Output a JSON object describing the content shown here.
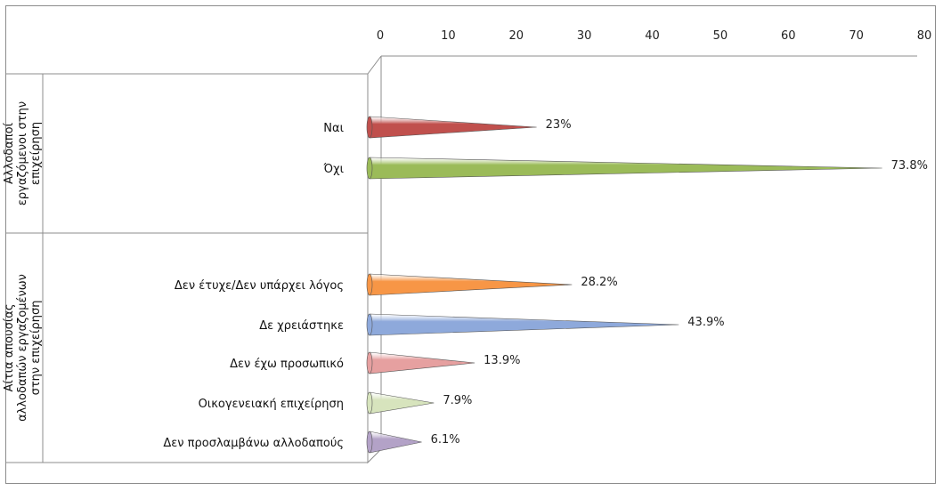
{
  "chart_data": {
    "type": "bar",
    "orientation": "horizontal",
    "style": "3d-cone",
    "x_ticks": [
      "0",
      "10",
      "20",
      "30",
      "40",
      "50",
      "60",
      "70",
      "80"
    ],
    "xlim": [
      0,
      80
    ],
    "groups": [
      {
        "label": "Αλλοδαποί εργαζόμενοι στην επιχείρηση",
        "categories": [
          {
            "label": "Ναι",
            "value": 23,
            "data_label": "23%",
            "color": "#c0504d"
          },
          {
            "label": "Όχι",
            "value": 73.8,
            "data_label": "73.8%",
            "color": "#9bbb59"
          }
        ]
      },
      {
        "label": "Αίτια απουσίας αλλοδαπών εργαζομένων στην επιχείρηση",
        "categories": [
          {
            "label": "Δεν έτυχε/Δεν υπάρχει λόγος",
            "value": 28.2,
            "data_label": "28.2%",
            "color": "#f79646"
          },
          {
            "label": "Δε χρειάστηκε",
            "value": 43.9,
            "data_label": "43.9%",
            "color": "#8ea9db"
          },
          {
            "label": "Δεν έχω προσωπικό",
            "value": 13.9,
            "data_label": "13.9%",
            "color": "#e6a0a0"
          },
          {
            "label": "Οικογενειακή επιχείρηση",
            "value": 7.9,
            "data_label": "7.9%",
            "color": "#d7e4bd"
          },
          {
            "label": "Δεν προσλαμβάνω αλλοδαπούς",
            "value": 6.1,
            "data_label": "6.1%",
            "color": "#b3a2c7"
          }
        ]
      }
    ],
    "grid": false,
    "legend": "none"
  }
}
